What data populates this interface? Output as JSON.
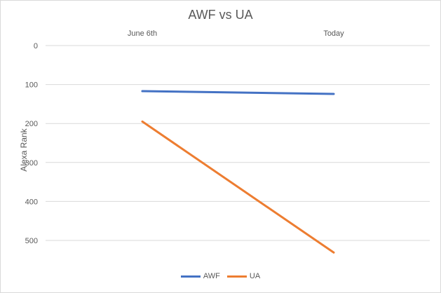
{
  "chart_data": {
    "type": "line",
    "title": "AWF vs UA",
    "xlabel": "",
    "ylabel": "Alexa Rank",
    "categories": [
      "June 6th",
      "Today"
    ],
    "x_axis_position": "top",
    "y_reversed": true,
    "ylim": [
      0,
      550
    ],
    "yticks": [
      0,
      100,
      200,
      300,
      400,
      500
    ],
    "grid": true,
    "legend": "bottom",
    "series": [
      {
        "name": "AWF",
        "values": [
          117,
          124
        ],
        "color": "#4472C4"
      },
      {
        "name": "UA",
        "values": [
          195,
          531
        ],
        "color": "#ED7D31"
      }
    ]
  }
}
